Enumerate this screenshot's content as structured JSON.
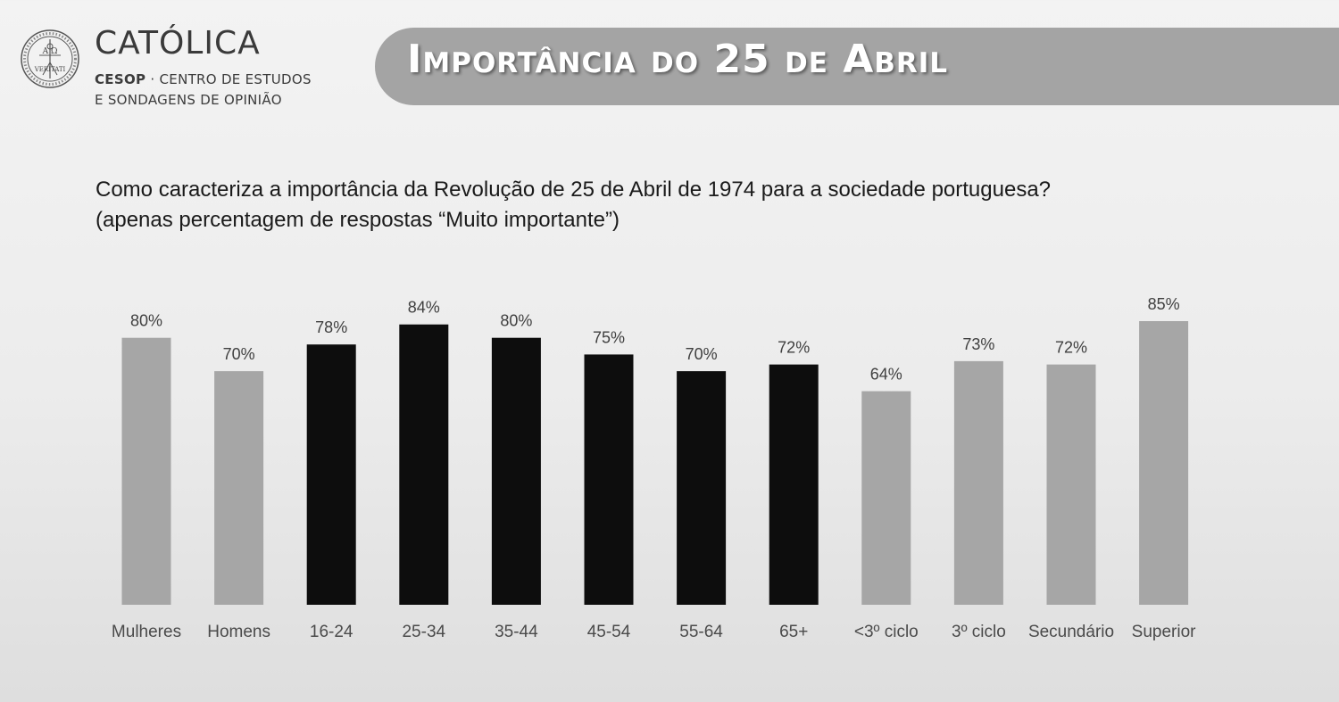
{
  "header": {
    "logo_name": "CATÓLICA",
    "logo_sub_bold": "CESOP",
    "logo_sub_line1_rest": " · CENTRO DE ESTUDOS",
    "logo_sub_line2": "E SONDAGENS DE OPINIÃO",
    "seal_letters_top": "A  Ω",
    "seal_motto": "VERITATI",
    "title": "Importância do 25 de Abril"
  },
  "question": {
    "line1": "Como caracteriza a importância da Revolução de 25 de Abril de 1974 para a sociedade portuguesa?",
    "line2": "(apenas percentagem de respostas “Muito importante”)"
  },
  "colors": {
    "gender_education": "#a6a6a6",
    "age": "#0d0d0d",
    "banner": "#a4a4a4"
  },
  "chart_data": {
    "type": "bar",
    "title": "",
    "xlabel": "",
    "ylabel": "",
    "ylim": [
      0,
      100
    ],
    "grid": false,
    "legend": "none",
    "categories": [
      "Mulheres",
      "Homens",
      "16-24",
      "25-34",
      "35-44",
      "45-54",
      "55-64",
      "65+",
      "<3º ciclo",
      "3º ciclo",
      "Secundário",
      "Superior"
    ],
    "values": [
      80,
      70,
      78,
      84,
      80,
      75,
      70,
      72,
      64,
      73,
      72,
      85
    ],
    "value_labels": [
      "80%",
      "70%",
      "78%",
      "84%",
      "80%",
      "75%",
      "70%",
      "72%",
      "64%",
      "73%",
      "72%",
      "85%"
    ],
    "groups": [
      "gender_education",
      "gender_education",
      "age",
      "age",
      "age",
      "age",
      "age",
      "age",
      "gender_education",
      "gender_education",
      "gender_education",
      "gender_education"
    ]
  }
}
